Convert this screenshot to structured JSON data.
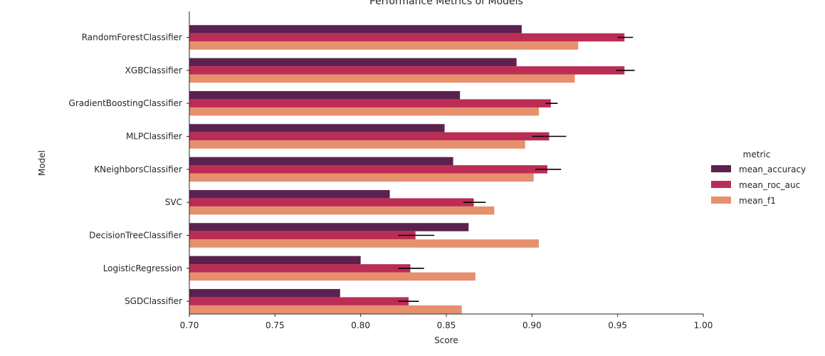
{
  "chart_data": {
    "type": "bar",
    "orientation": "horizontal",
    "title": "Performance Metrics of Models",
    "xlabel": "Score",
    "ylabel": "Model",
    "xlim": [
      0.7,
      1.0
    ],
    "xticks": [
      "0.70",
      "0.75",
      "0.80",
      "0.85",
      "0.90",
      "0.95",
      "1.00"
    ],
    "xtick_values": [
      0.7,
      0.75,
      0.8,
      0.85,
      0.9,
      0.95,
      1.0
    ],
    "grid": false,
    "legend": {
      "title": "metric",
      "placement": "right"
    },
    "categories": [
      "RandomForestClassifier",
      "XGBClassifier",
      "GradientBoostingClassifier",
      "MLPClassifier",
      "KNeighborsClassifier",
      "SVC",
      "DecisionTreeClassifier",
      "LogisticRegression",
      "SGDClassifier"
    ],
    "series": [
      {
        "name": "mean_accuracy",
        "color": "#5b2250",
        "values": [
          0.894,
          0.891,
          0.858,
          0.849,
          0.854,
          0.817,
          0.863,
          0.8,
          0.788
        ],
        "errors": null
      },
      {
        "name": "mean_roc_auc",
        "color": "#bb2d55",
        "values": [
          0.954,
          0.954,
          0.911,
          0.91,
          0.909,
          0.866,
          0.832,
          0.829,
          0.828
        ],
        "errors": [
          [
            0.95,
            0.959
          ],
          [
            0.949,
            0.96
          ],
          [
            0.908,
            0.915
          ],
          [
            0.9,
            0.92
          ],
          [
            0.902,
            0.917
          ],
          [
            0.86,
            0.873
          ],
          [
            0.822,
            0.843
          ],
          [
            0.822,
            0.837
          ],
          [
            0.822,
            0.834
          ]
        ]
      },
      {
        "name": "mean_f1",
        "color": "#e6906e",
        "values": [
          0.927,
          0.925,
          0.904,
          0.896,
          0.901,
          0.878,
          0.904,
          0.867,
          0.859
        ],
        "errors": null
      }
    ]
  }
}
